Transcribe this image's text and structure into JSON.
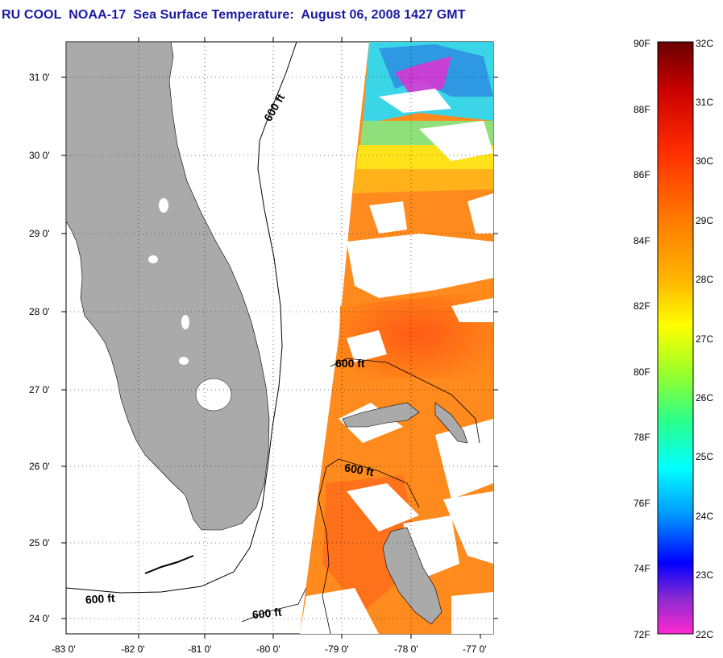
{
  "title": "RU COOL  NOAA-17  Sea Surface Temperature:  August 06, 2008 1427 GMT",
  "map": {
    "lat_labels": [
      "31 0'",
      "30 0'",
      "29 0'",
      "28 0'",
      "27 0'",
      "26 0'",
      "25 0'",
      "24 0'"
    ],
    "lon_labels": [
      "-83 0'",
      "-82 0'",
      "-81 0'",
      "-80 0'",
      "-79 0'",
      "-78 0'",
      "-77 0'"
    ],
    "contour_labels": [
      "600 ft",
      "600 ft",
      "600 ft",
      "600 ft",
      "600 ft"
    ],
    "land_color": "#aaaaaa",
    "grid": "dotted"
  },
  "colorbar": {
    "f_labels": [
      "90F",
      "88F",
      "86F",
      "84F",
      "82F",
      "80F",
      "78F",
      "76F",
      "74F",
      "72F"
    ],
    "c_labels": [
      "32C",
      "31C",
      "30C",
      "29C",
      "28C",
      "27C",
      "26C",
      "25C",
      "24C",
      "23C",
      "22C"
    ]
  }
}
